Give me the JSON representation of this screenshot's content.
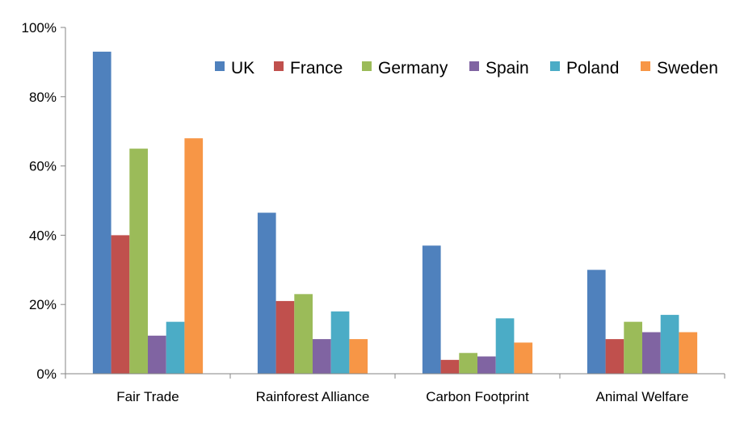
{
  "chart_data": {
    "type": "bar",
    "title": "",
    "xlabel": "",
    "ylabel": "",
    "ylim": [
      0,
      100
    ],
    "y_tick_values": [
      0,
      20,
      40,
      60,
      80,
      100
    ],
    "y_tick_labels": [
      "0%",
      "20%",
      "40%",
      "60%",
      "80%",
      "100%"
    ],
    "grid": false,
    "legend_position": "top-right",
    "categories": [
      "Fair Trade",
      "Rainforest Alliance",
      "Carbon Footprint",
      "Animal Welfare"
    ],
    "series": [
      {
        "name": "UK",
        "color": "#4F81BD",
        "values": [
          93,
          46.5,
          37,
          30
        ]
      },
      {
        "name": "France",
        "color": "#C0504D",
        "values": [
          40,
          21,
          4,
          10
        ]
      },
      {
        "name": "Germany",
        "color": "#9BBB59",
        "values": [
          65,
          23,
          6,
          15
        ]
      },
      {
        "name": "Spain",
        "color": "#8064A2",
        "values": [
          11,
          10,
          5,
          12
        ]
      },
      {
        "name": "Poland",
        "color": "#4BACC6",
        "values": [
          15,
          18,
          16,
          17
        ]
      },
      {
        "name": "Sweden",
        "color": "#F79646",
        "values": [
          68,
          10,
          9,
          12
        ]
      }
    ]
  }
}
